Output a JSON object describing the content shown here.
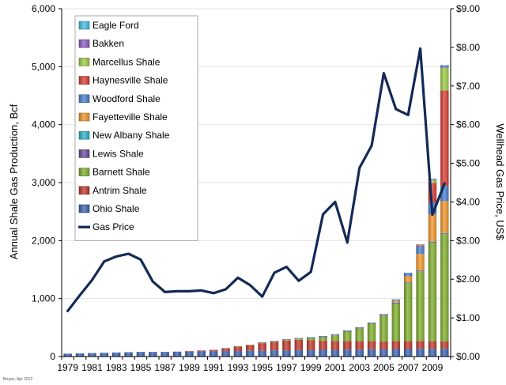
{
  "chart_data": {
    "type": "bar",
    "stacked": true,
    "x_categories": [
      "1979",
      "1980",
      "1981",
      "1982",
      "1983",
      "1984",
      "1985",
      "1986",
      "1987",
      "1988",
      "1989",
      "1990",
      "1991",
      "1992",
      "1993",
      "1994",
      "1995",
      "1996",
      "1997",
      "1998",
      "1999",
      "2000",
      "2001",
      "2002",
      "2003",
      "2004",
      "2005",
      "2006",
      "2007",
      "2008",
      "2009",
      "2010"
    ],
    "x_tick_labels": [
      "1979",
      "1981",
      "1983",
      "1985",
      "1987",
      "1989",
      "1991",
      "1993",
      "1995",
      "1997",
      "1999",
      "2001",
      "2003",
      "2005",
      "2007",
      "2009"
    ],
    "ylabel_left": "Annual Shale Gas Production, Bcf",
    "ylabel_right": "Wellhead Gas Price, US$",
    "ylim_left": [
      0,
      6000
    ],
    "ylim_right": [
      0,
      9
    ],
    "y_left_ticks": [
      "0",
      "1,000",
      "2,000",
      "3,000",
      "4,000",
      "5,000",
      "6,000"
    ],
    "y_right_ticks": [
      "$0.00",
      "$1.00",
      "$2.00",
      "$3.00",
      "$4.00",
      "$5.00",
      "$6.00",
      "$7.00",
      "$8.00",
      "$9.00"
    ],
    "legend_position": "top-left",
    "series": [
      {
        "name": "Ohio Shale",
        "color": "#3a62b0",
        "values": [
          50,
          55,
          60,
          65,
          70,
          75,
          80,
          80,
          80,
          85,
          85,
          90,
          90,
          95,
          95,
          100,
          100,
          105,
          105,
          110,
          110,
          115,
          115,
          120,
          120,
          125,
          125,
          130,
          130,
          135,
          135,
          135
        ]
      },
      {
        "name": "Antrim Shale",
        "color": "#c0392b",
        "values": [
          0,
          0,
          0,
          0,
          0,
          0,
          0,
          0,
          0,
          0,
          10,
          15,
          25,
          50,
          80,
          100,
          130,
          150,
          170,
          180,
          170,
          160,
          150,
          150,
          145,
          140,
          135,
          135,
          135,
          135,
          130,
          125
        ]
      },
      {
        "name": "Barnett Shale",
        "color": "#7fae2e",
        "values": [
          0,
          0,
          0,
          0,
          0,
          0,
          0,
          0,
          0,
          0,
          0,
          0,
          0,
          0,
          5,
          5,
          10,
          10,
          15,
          20,
          40,
          60,
          100,
          160,
          220,
          300,
          440,
          650,
          1000,
          1200,
          1700,
          1850
        ]
      },
      {
        "name": "Lewis Shale",
        "color": "#6a4a9c",
        "values": [
          0,
          0,
          0,
          0,
          0,
          0,
          0,
          0,
          0,
          0,
          0,
          0,
          0,
          0,
          0,
          0,
          5,
          5,
          10,
          10,
          10,
          15,
          15,
          15,
          15,
          15,
          15,
          15,
          15,
          15,
          15,
          15
        ]
      },
      {
        "name": "New Albany Shale",
        "color": "#2bb3c8",
        "values": [
          0,
          0,
          0,
          0,
          0,
          0,
          0,
          0,
          0,
          0,
          0,
          0,
          0,
          0,
          0,
          0,
          0,
          0,
          0,
          0,
          5,
          5,
          5,
          5,
          5,
          5,
          5,
          5,
          5,
          5,
          5,
          5
        ]
      },
      {
        "name": "Fayetteville Shale",
        "color": "#f0962a",
        "values": [
          0,
          0,
          0,
          0,
          0,
          0,
          0,
          0,
          0,
          0,
          0,
          0,
          0,
          0,
          0,
          0,
          0,
          0,
          0,
          0,
          0,
          0,
          0,
          0,
          0,
          0,
          10,
          30,
          100,
          280,
          470,
          550
        ]
      },
      {
        "name": "Woodford Shale",
        "color": "#4a7fd0",
        "values": [
          0,
          0,
          0,
          0,
          0,
          0,
          0,
          0,
          0,
          0,
          0,
          0,
          0,
          0,
          0,
          0,
          0,
          0,
          0,
          0,
          0,
          0,
          0,
          0,
          0,
          0,
          5,
          20,
          60,
          130,
          200,
          260
        ]
      },
      {
        "name": "Haynesville Shale",
        "color": "#d63c33",
        "values": [
          0,
          0,
          0,
          0,
          0,
          0,
          0,
          0,
          0,
          0,
          0,
          0,
          0,
          0,
          0,
          0,
          0,
          0,
          0,
          0,
          0,
          0,
          0,
          0,
          0,
          0,
          0,
          0,
          0,
          20,
          340,
          1650
        ]
      },
      {
        "name": "Marcellus Shale",
        "color": "#9ccc45",
        "values": [
          0,
          0,
          0,
          0,
          0,
          0,
          0,
          0,
          0,
          0,
          0,
          0,
          0,
          0,
          0,
          0,
          0,
          0,
          0,
          0,
          0,
          0,
          0,
          0,
          0,
          0,
          0,
          0,
          0,
          10,
          50,
          390
        ]
      },
      {
        "name": "Bakken",
        "color": "#8a5cc2",
        "values": [
          0,
          0,
          0,
          0,
          0,
          0,
          0,
          0,
          0,
          0,
          0,
          0,
          0,
          0,
          0,
          0,
          0,
          0,
          0,
          0,
          0,
          0,
          0,
          0,
          0,
          0,
          0,
          0,
          0,
          5,
          20,
          30
        ]
      },
      {
        "name": "Eagle Ford",
        "color": "#46bce0",
        "values": [
          0,
          0,
          0,
          0,
          0,
          0,
          0,
          0,
          0,
          0,
          0,
          0,
          0,
          0,
          0,
          0,
          0,
          0,
          0,
          0,
          0,
          0,
          0,
          0,
          0,
          0,
          0,
          0,
          0,
          0,
          5,
          20
        ]
      }
    ],
    "line_series": {
      "name": "Gas Price",
      "color": "#132a55",
      "axis": "right",
      "values": [
        1.18,
        1.59,
        1.98,
        2.46,
        2.59,
        2.66,
        2.51,
        1.94,
        1.67,
        1.69,
        1.69,
        1.71,
        1.64,
        1.74,
        2.04,
        1.85,
        1.55,
        2.17,
        2.32,
        1.96,
        2.19,
        3.68,
        4.0,
        2.95,
        4.88,
        5.46,
        7.33,
        6.4,
        6.25,
        7.97,
        3.67,
        4.48
      ]
    },
    "legend_order": [
      "Eagle Ford",
      "Bakken",
      "Marcellus Shale",
      "Haynesville Shale",
      "Woodford Shale",
      "Fayetteville Shale",
      "New Albany Shale",
      "Lewis Shale",
      "Barnett Shale",
      "Antrim Shale",
      "Ohio Shale",
      "Gas Price"
    ],
    "credit": "Bruyer, Apr 2012"
  }
}
